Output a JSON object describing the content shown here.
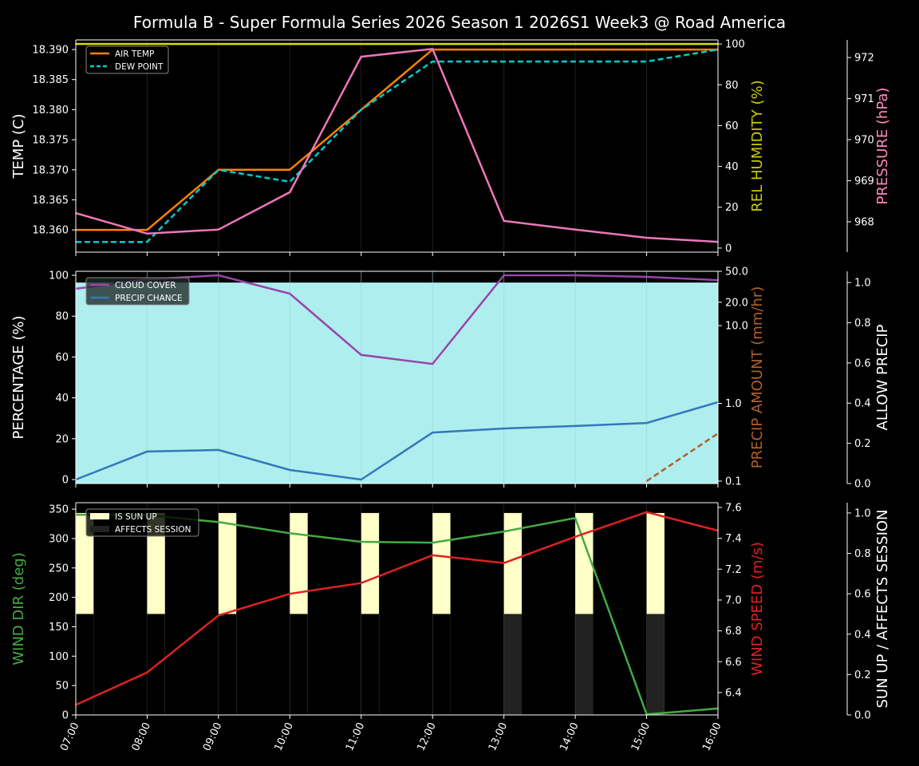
{
  "title": "Formula B - Super Formula Series 2026 Season 1 2026S1 Week3 @ Road America",
  "x": [
    "07:00",
    "08:00",
    "09:00",
    "10:00",
    "11:00",
    "12:00",
    "13:00",
    "14:00",
    "15:00",
    "16:00"
  ],
  "chart_data": [
    {
      "type": "line",
      "panel": "top",
      "axes": {
        "left": {
          "label": "TEMP (C)",
          "color": "#ffffff",
          "ylim": [
            18.3563,
            18.3916
          ],
          "ticks": [
            "18.360",
            "18.365",
            "18.370",
            "18.375",
            "18.380",
            "18.385",
            "18.390"
          ]
        },
        "right": {
          "label": "REL HUMIDITY (%)",
          "color": "#cccc00",
          "ylim": [
            -2,
            102
          ],
          "ticks": [
            "0",
            "20",
            "40",
            "60",
            "80",
            "100"
          ]
        },
        "right2": {
          "label": "PRESSURE (hPa)",
          "color": "#ff88bb",
          "ylim": [
            967.26,
            972.43
          ],
          "ticks": [
            "968",
            "969",
            "970",
            "971",
            "972"
          ]
        }
      },
      "series": [
        {
          "name": "AIR TEMP",
          "axis": "left",
          "color": "#ff8000",
          "dash": false,
          "values": [
            18.36,
            18.36,
            18.37,
            18.37,
            18.38,
            18.39,
            18.39,
            18.39,
            18.39,
            18.39
          ]
        },
        {
          "name": "DEW POINT",
          "axis": "left",
          "color": "#00cccc",
          "dash": true,
          "values": [
            18.358,
            18.358,
            18.37,
            18.368,
            18.38,
            18.388,
            18.388,
            18.388,
            18.388,
            18.39
          ]
        },
        {
          "axis": "right",
          "color": "#dddd00",
          "dash": false,
          "values": [
            100,
            100,
            100,
            100,
            100,
            100,
            100,
            100,
            100,
            100
          ]
        },
        {
          "axis": "right2",
          "color": "#ee77bb",
          "dash": false,
          "values": [
            968.21,
            967.71,
            967.81,
            968.72,
            972.02,
            972.21,
            968.02,
            967.81,
            967.61,
            967.51
          ]
        }
      ],
      "legend": "top-left"
    },
    {
      "type": "line",
      "panel": "middle",
      "axes": {
        "left": {
          "label": "PERCENTAGE (%)",
          "color": "#ffffff",
          "ylim": [
            -1.95,
            101.95
          ],
          "ticks": [
            "0",
            "20",
            "40",
            "60",
            "80",
            "100"
          ]
        },
        "right": {
          "label": "PRECIP AMOUNT (mm/hr)",
          "color": "#b0602a",
          "scale": "log",
          "ylim": [
            0.093,
            50
          ],
          "ticks": [
            "0.1",
            "1.0",
            "10.0",
            "20.0",
            "50.0"
          ]
        },
        "right2": {
          "label": "ALLOW PRECIP",
          "color": "#ffffff",
          "ylim": [
            0,
            1.056
          ],
          "ticks": [
            "0.0",
            "0.2",
            "0.4",
            "0.6",
            "0.8",
            "1.0"
          ]
        }
      },
      "fill": {
        "axis": "right2",
        "color": "#afeeee",
        "values": [
          1,
          1,
          1,
          1,
          1,
          1,
          1,
          1,
          1,
          1
        ]
      },
      "series": [
        {
          "name": "CLOUD COVER",
          "axis": "left",
          "color": "#9944aa",
          "dash": false,
          "values": [
            93.4,
            98,
            100,
            91,
            61,
            56.6,
            100,
            100,
            99.2,
            97.6
          ]
        },
        {
          "name": "PRECIP CHANCE",
          "axis": "left",
          "color": "#3377bb",
          "dash": false,
          "values": [
            0,
            13.7,
            14.5,
            4.7,
            0,
            23,
            25,
            26.2,
            27.7,
            37.9
          ]
        },
        {
          "axis": "right",
          "color": "#b0602a",
          "dash": true,
          "values": [
            null,
            null,
            null,
            null,
            null,
            null,
            null,
            null,
            0.1,
            0.41
          ]
        }
      ],
      "legend": "top-left"
    },
    {
      "type": "line",
      "panel": "bottom",
      "axes": {
        "left": {
          "label": "WIND DIR (deg)",
          "color": "#44aa44",
          "ylim": [
            0,
            361
          ],
          "ticks": [
            "0",
            "50",
            "100",
            "150",
            "200",
            "250",
            "300",
            "350"
          ]
        },
        "right": {
          "label": "WIND SPEED (m/s)",
          "color": "#dd2222",
          "ylim": [
            6.255,
            7.631
          ],
          "ticks": [
            "6.4",
            "6.6",
            "6.8",
            "7.0",
            "7.2",
            "7.4",
            "7.6"
          ]
        },
        "right2": {
          "label": "SUN UP / AFFECTS SESSION",
          "color": "#ffffff",
          "ylim": [
            0,
            1.051
          ],
          "ticks": [
            "0.0",
            "0.2",
            "0.4",
            "0.6",
            "0.8",
            "1.0"
          ]
        }
      },
      "bars": [
        {
          "name": "IS SUN UP",
          "axis": "right2",
          "color": "#ffffc8",
          "values": [
            1,
            1,
            1,
            1,
            1,
            1,
            1,
            1,
            1,
            0
          ]
        },
        {
          "name": "AFFECTS SESSION",
          "axis": "right2",
          "color": "#222222",
          "values": [
            0,
            0,
            0,
            0,
            0,
            0,
            0.5,
            0.5,
            0.5,
            0
          ]
        }
      ],
      "series": [
        {
          "axis": "left",
          "color": "#44aa44",
          "dash": false,
          "values": [
            340.5,
            340,
            328,
            309,
            294.5,
            293,
            312,
            335,
            1,
            11
          ]
        },
        {
          "axis": "right",
          "color": "#dd2222",
          "dash": false,
          "values": [
            6.32,
            6.53,
            6.9,
            7.04,
            7.11,
            7.29,
            7.24,
            7.41,
            7.57,
            7.45
          ]
        }
      ],
      "legend": "top-left"
    }
  ]
}
